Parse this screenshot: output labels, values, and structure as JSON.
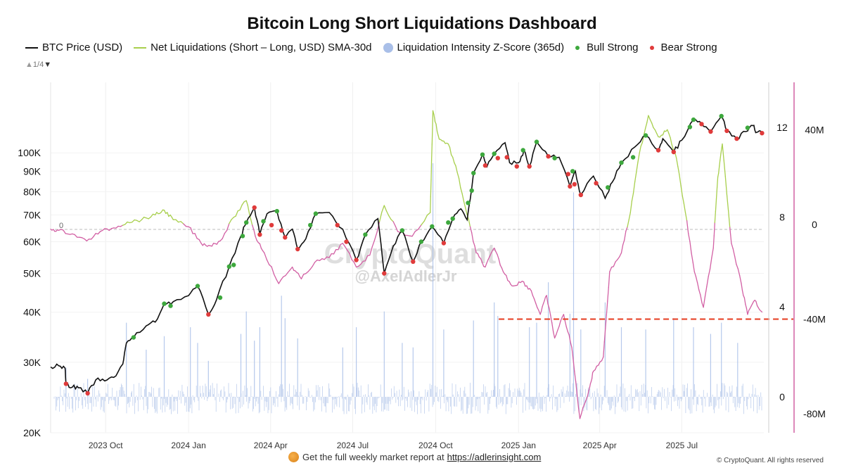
{
  "title": "Bitcoin Long Short Liquidations Dashboard",
  "legend": {
    "price": "BTC Price (USD)",
    "net": "Net Liquidations (Short – Long, USD) SMA-30d",
    "intensity": "Liquidation Intensity Z-Score (365d)",
    "bull": "Bull Strong",
    "bear": "Bear Strong"
  },
  "pager": {
    "text": "1/4",
    "up_icon": "triangle-up-icon",
    "down_icon": "triangle-down-icon"
  },
  "watermark": {
    "brand": "CryptoQuant",
    "handle": "@AxelAdlerJr"
  },
  "footer": {
    "text": "Get the full weekly market report at",
    "link": "https://adlerinsight.com",
    "icon": "coin-icon"
  },
  "copyright": "© CryptoQuant. All rights reserved",
  "zero_label": "0",
  "colors": {
    "price": "#111111",
    "net_positive": "#a8cf4d",
    "net_negative": "#d260a4",
    "intensity": "#a9bfe8",
    "bull": "#3da83d",
    "bear": "#e03b3b",
    "threshold": "#e53a1e",
    "axis_right": "#d260a4"
  },
  "chart_data": {
    "type": "line",
    "x_ticks": [
      "2023 Oct",
      "2024 Jan",
      "2024 Apr",
      "2024 Jul",
      "2024 Oct",
      "2025 Jan",
      "2025 Apr",
      "2025 Jul"
    ],
    "x_tick_dates": [
      "2023-10-01",
      "2024-01-01",
      "2024-04-01",
      "2024-07-01",
      "2024-10-01",
      "2025-01-01",
      "2025-04-01",
      "2025-07-01"
    ],
    "x_range": [
      "2023-08-01",
      "2025-09-30"
    ],
    "y_left": {
      "label": "BTC Price (USD)",
      "scale": "log",
      "range": [
        20000,
        150000
      ],
      "ticks": [
        {
          "value": 20000,
          "label": "20K"
        },
        {
          "value": 30000,
          "label": "30K"
        },
        {
          "value": 40000,
          "label": "40K"
        },
        {
          "value": 50000,
          "label": "50K"
        },
        {
          "value": 60000,
          "label": "60K"
        },
        {
          "value": 70000,
          "label": "70K"
        },
        {
          "value": 80000,
          "label": "80K"
        },
        {
          "value": 90000,
          "label": "90K"
        },
        {
          "value": 100000,
          "label": "100K"
        }
      ]
    },
    "y_mid": {
      "label": "Liquidation Intensity Z-Score (365d)",
      "range": [
        -1.6,
        14
      ],
      "ticks": [
        {
          "value": 0,
          "label": "0"
        },
        {
          "value": 4,
          "label": "4"
        },
        {
          "value": 8,
          "label": "8"
        },
        {
          "value": 12,
          "label": "12"
        }
      ]
    },
    "y_right": {
      "label": "Net Liquidations (USD)",
      "range": [
        -88000000,
        60000000
      ],
      "ticks": [
        {
          "value": -80000000,
          "label": "-80M"
        },
        {
          "value": -40000000,
          "label": "-40M"
        },
        {
          "value": 0,
          "label": "0"
        },
        {
          "value": 40000000,
          "label": "40M"
        }
      ]
    },
    "threshold": {
      "value": -40000000,
      "from": "2024-12-10",
      "style": "dashed"
    },
    "price_series": [
      [
        "2023-08-01",
        29200
      ],
      [
        "2023-08-10",
        29400
      ],
      [
        "2023-08-17",
        29000
      ],
      [
        "2023-08-18",
        26500
      ],
      [
        "2023-08-25",
        26000
      ],
      [
        "2023-09-01",
        25900
      ],
      [
        "2023-09-11",
        25100
      ],
      [
        "2023-09-20",
        27100
      ],
      [
        "2023-09-30",
        26950
      ],
      [
        "2023-10-10",
        27500
      ],
      [
        "2023-10-20",
        29700
      ],
      [
        "2023-10-24",
        33500
      ],
      [
        "2023-11-01",
        34600
      ],
      [
        "2023-11-15",
        37000
      ],
      [
        "2023-11-25",
        37800
      ],
      [
        "2023-12-05",
        42000
      ],
      [
        "2023-12-15",
        42500
      ],
      [
        "2024-01-01",
        44000
      ],
      [
        "2024-01-11",
        46500
      ],
      [
        "2024-01-23",
        39500
      ],
      [
        "2024-02-01",
        43000
      ],
      [
        "2024-02-15",
        52000
      ],
      [
        "2024-02-28",
        62000
      ],
      [
        "2024-03-05",
        67000
      ],
      [
        "2024-03-14",
        73000
      ],
      [
        "2024-03-20",
        62500
      ],
      [
        "2024-03-28",
        70500
      ],
      [
        "2024-04-08",
        71500
      ],
      [
        "2024-04-17",
        61500
      ],
      [
        "2024-04-25",
        64500
      ],
      [
        "2024-05-01",
        57500
      ],
      [
        "2024-05-10",
        61000
      ],
      [
        "2024-05-21",
        70500
      ],
      [
        "2024-06-05",
        71000
      ],
      [
        "2024-06-20",
        64500
      ],
      [
        "2024-07-05",
        54000
      ],
      [
        "2024-07-15",
        62500
      ],
      [
        "2024-07-29",
        68500
      ],
      [
        "2024-08-05",
        50000
      ],
      [
        "2024-08-15",
        58500
      ],
      [
        "2024-08-25",
        64000
      ],
      [
        "2024-09-06",
        53500
      ],
      [
        "2024-09-15",
        60000
      ],
      [
        "2024-09-27",
        65500
      ],
      [
        "2024-10-10",
        59500
      ],
      [
        "2024-10-20",
        68500
      ],
      [
        "2024-10-29",
        72500
      ],
      [
        "2024-11-05",
        68000
      ],
      [
        "2024-11-12",
        89000
      ],
      [
        "2024-11-22",
        99000
      ],
      [
        "2024-11-27",
        92500
      ],
      [
        "2024-12-05",
        99500
      ],
      [
        "2024-12-17",
        106000
      ],
      [
        "2024-12-22",
        94500
      ],
      [
        "2025-01-01",
        94500
      ],
      [
        "2025-01-07",
        101500
      ],
      [
        "2025-01-13",
        92500
      ],
      [
        "2025-01-21",
        106500
      ],
      [
        "2025-02-03",
        98000
      ],
      [
        "2025-02-15",
        97500
      ],
      [
        "2025-02-27",
        82500
      ],
      [
        "2025-03-05",
        90000
      ],
      [
        "2025-03-11",
        78500
      ],
      [
        "2025-03-25",
        87500
      ],
      [
        "2025-04-07",
        77000
      ],
      [
        "2025-04-15",
        84500
      ],
      [
        "2025-04-25",
        94500
      ],
      [
        "2025-05-10",
        103500
      ],
      [
        "2025-05-22",
        110500
      ],
      [
        "2025-06-05",
        101500
      ],
      [
        "2025-06-10",
        108500
      ],
      [
        "2025-06-22",
        100500
      ],
      [
        "2025-07-01",
        107500
      ],
      [
        "2025-07-14",
        121000
      ],
      [
        "2025-07-23",
        118000
      ],
      [
        "2025-08-02",
        113000
      ],
      [
        "2025-08-14",
        123500
      ],
      [
        "2025-08-20",
        113500
      ],
      [
        "2025-08-31",
        108500
      ],
      [
        "2025-09-10",
        113000
      ],
      [
        "2025-09-18",
        117000
      ],
      [
        "2025-09-22",
        112500
      ],
      [
        "2025-09-28",
        112000
      ]
    ],
    "net_liq_series": [
      [
        "2023-08-01",
        -2000000
      ],
      [
        "2023-08-10",
        -2500000
      ],
      [
        "2023-08-25",
        -4000000
      ],
      [
        "2023-09-10",
        -7000000
      ],
      [
        "2023-09-25",
        -3000000
      ],
      [
        "2023-10-10",
        -1500000
      ],
      [
        "2023-10-25",
        1000000
      ],
      [
        "2023-11-10",
        2000000
      ],
      [
        "2023-11-25",
        4000000
      ],
      [
        "2023-12-05",
        6000000
      ],
      [
        "2023-12-15",
        2000000
      ],
      [
        "2024-01-01",
        -1000000
      ],
      [
        "2024-01-15",
        -8000000
      ],
      [
        "2024-01-25",
        -9000000
      ],
      [
        "2024-02-05",
        -7000000
      ],
      [
        "2024-02-20",
        3000000
      ],
      [
        "2024-03-05",
        10000000
      ],
      [
        "2024-03-15",
        -5000000
      ],
      [
        "2024-03-25",
        -12000000
      ],
      [
        "2024-04-10",
        -25000000
      ],
      [
        "2024-04-25",
        -18000000
      ],
      [
        "2024-05-05",
        -23000000
      ],
      [
        "2024-05-20",
        -16000000
      ],
      [
        "2024-06-05",
        -14000000
      ],
      [
        "2024-06-20",
        -8000000
      ],
      [
        "2024-07-05",
        -18000000
      ],
      [
        "2024-07-20",
        -13000000
      ],
      [
        "2024-08-05",
        8000000
      ],
      [
        "2024-08-20",
        -3000000
      ],
      [
        "2024-09-05",
        -5000000
      ],
      [
        "2024-09-25",
        5000000
      ],
      [
        "2024-09-28",
        48000000
      ],
      [
        "2024-10-05",
        36000000
      ],
      [
        "2024-10-15",
        34000000
      ],
      [
        "2024-10-25",
        22000000
      ],
      [
        "2024-11-05",
        4000000
      ],
      [
        "2024-11-15",
        -12000000
      ],
      [
        "2024-11-25",
        -18000000
      ],
      [
        "2024-12-05",
        -10000000
      ],
      [
        "2024-12-15",
        -20000000
      ],
      [
        "2024-12-25",
        -26000000
      ],
      [
        "2025-01-05",
        -24000000
      ],
      [
        "2025-01-15",
        -28000000
      ],
      [
        "2025-01-25",
        -38000000
      ],
      [
        "2025-02-01",
        -30000000
      ],
      [
        "2025-02-10",
        -48000000
      ],
      [
        "2025-02-20",
        -38000000
      ],
      [
        "2025-03-01",
        -52000000
      ],
      [
        "2025-03-10",
        -82000000
      ],
      [
        "2025-03-20",
        -70000000
      ],
      [
        "2025-03-25",
        -62000000
      ],
      [
        "2025-04-05",
        -56000000
      ],
      [
        "2025-04-12",
        -20000000
      ],
      [
        "2025-04-25",
        -12000000
      ],
      [
        "2025-05-05",
        5000000
      ],
      [
        "2025-05-15",
        30000000
      ],
      [
        "2025-05-25",
        46000000
      ],
      [
        "2025-06-05",
        37000000
      ],
      [
        "2025-06-15",
        40000000
      ],
      [
        "2025-06-25",
        28000000
      ],
      [
        "2025-07-05",
        5000000
      ],
      [
        "2025-07-15",
        -20000000
      ],
      [
        "2025-07-25",
        -35000000
      ],
      [
        "2025-08-05",
        -10000000
      ],
      [
        "2025-08-10",
        20000000
      ],
      [
        "2025-08-15",
        34000000
      ],
      [
        "2025-08-25",
        -8000000
      ],
      [
        "2025-09-05",
        -25000000
      ],
      [
        "2025-09-12",
        -38000000
      ],
      [
        "2025-09-20",
        -32000000
      ],
      [
        "2025-09-28",
        -37000000
      ]
    ],
    "intensity_spikes": [
      [
        "2023-08-18",
        1.3
      ],
      [
        "2023-09-11",
        0.8
      ],
      [
        "2023-10-24",
        3.3
      ],
      [
        "2023-11-15",
        2.1
      ],
      [
        "2023-12-05",
        2.7
      ],
      [
        "2024-01-03",
        3.1
      ],
      [
        "2024-01-11",
        2.4
      ],
      [
        "2024-01-23",
        1.6
      ],
      [
        "2024-02-28",
        2.8
      ],
      [
        "2024-03-05",
        3.8
      ],
      [
        "2024-03-14",
        2.5
      ],
      [
        "2024-03-20",
        3.1
      ],
      [
        "2024-04-13",
        4.5
      ],
      [
        "2024-04-17",
        3.5
      ],
      [
        "2024-05-01",
        2.6
      ],
      [
        "2024-06-20",
        2.2
      ],
      [
        "2024-07-05",
        3.1
      ],
      [
        "2024-08-05",
        3.8
      ],
      [
        "2024-08-25",
        2.4
      ],
      [
        "2024-09-06",
        2.2
      ],
      [
        "2024-09-28",
        10.4
      ],
      [
        "2024-10-10",
        3.0
      ],
      [
        "2024-11-12",
        3.4
      ],
      [
        "2024-12-05",
        4.2
      ],
      [
        "2024-12-09",
        3.6
      ],
      [
        "2025-01-13",
        3.1
      ],
      [
        "2025-01-21",
        3.3
      ],
      [
        "2025-02-03",
        5.1
      ],
      [
        "2025-02-27",
        3.7
      ],
      [
        "2025-03-03",
        9.1
      ],
      [
        "2025-03-11",
        3.0
      ],
      [
        "2025-04-07",
        4.2
      ],
      [
        "2025-04-25",
        3.1
      ],
      [
        "2025-05-22",
        3.0
      ],
      [
        "2025-06-22",
        3.5
      ],
      [
        "2025-07-14",
        3.1
      ],
      [
        "2025-08-02",
        2.8
      ],
      [
        "2025-08-14",
        3.3
      ],
      [
        "2025-09-01",
        2.4
      ]
    ],
    "bull_points": [
      [
        "2023-11-01",
        34600
      ],
      [
        "2023-12-05",
        42000
      ],
      [
        "2023-12-12",
        41500
      ],
      [
        "2024-01-11",
        46500
      ],
      [
        "2024-02-05",
        43500
      ],
      [
        "2024-02-15",
        52000
      ],
      [
        "2024-02-20",
        52500
      ],
      [
        "2024-03-01",
        62000
      ],
      [
        "2024-03-05",
        67000
      ],
      [
        "2024-03-24",
        67500
      ],
      [
        "2024-04-08",
        71500
      ],
      [
        "2024-05-15",
        66000
      ],
      [
        "2024-05-21",
        70500
      ],
      [
        "2024-07-15",
        62500
      ],
      [
        "2024-08-25",
        64000
      ],
      [
        "2024-09-15",
        60000
      ],
      [
        "2024-09-27",
        65500
      ],
      [
        "2024-10-15",
        67000
      ],
      [
        "2024-10-20",
        68500
      ],
      [
        "2024-11-06",
        75000
      ],
      [
        "2024-11-10",
        80500
      ],
      [
        "2024-11-12",
        89000
      ],
      [
        "2024-11-22",
        99000
      ],
      [
        "2024-12-05",
        99500
      ],
      [
        "2025-01-06",
        101500
      ],
      [
        "2025-01-21",
        106500
      ],
      [
        "2025-02-10",
        97000
      ],
      [
        "2025-03-02",
        90000
      ],
      [
        "2025-04-10",
        82000
      ],
      [
        "2025-04-25",
        94500
      ],
      [
        "2025-05-08",
        97500
      ],
      [
        "2025-05-22",
        110500
      ],
      [
        "2025-07-10",
        116000
      ],
      [
        "2025-07-14",
        121000
      ],
      [
        "2025-08-14",
        123500
      ],
      [
        "2025-09-12",
        115500
      ]
    ],
    "bear_points": [
      [
        "2023-08-18",
        26500
      ],
      [
        "2023-09-11",
        25100
      ],
      [
        "2024-01-23",
        39500
      ],
      [
        "2024-03-14",
        73000
      ],
      [
        "2024-03-20",
        62500
      ],
      [
        "2024-04-02",
        66000
      ],
      [
        "2024-04-13",
        64000
      ],
      [
        "2024-04-17",
        61500
      ],
      [
        "2024-05-01",
        57500
      ],
      [
        "2024-06-14",
        66000
      ],
      [
        "2024-06-24",
        60000
      ],
      [
        "2024-07-05",
        54000
      ],
      [
        "2024-08-05",
        50000
      ],
      [
        "2024-09-06",
        53500
      ],
      [
        "2024-10-10",
        59500
      ],
      [
        "2024-11-25",
        93000
      ],
      [
        "2024-12-09",
        97000
      ],
      [
        "2024-12-19",
        97500
      ],
      [
        "2024-12-30",
        92500
      ],
      [
        "2025-01-13",
        92500
      ],
      [
        "2025-02-03",
        98000
      ],
      [
        "2025-02-25",
        88500
      ],
      [
        "2025-02-27",
        82500
      ],
      [
        "2025-03-04",
        83500
      ],
      [
        "2025-03-11",
        78500
      ],
      [
        "2025-03-28",
        84000
      ],
      [
        "2025-06-05",
        101500
      ],
      [
        "2025-06-22",
        100500
      ],
      [
        "2025-07-23",
        118000
      ],
      [
        "2025-08-02",
        113000
      ],
      [
        "2025-08-20",
        113500
      ],
      [
        "2025-08-31",
        108500
      ],
      [
        "2025-09-28",
        112000
      ]
    ]
  }
}
